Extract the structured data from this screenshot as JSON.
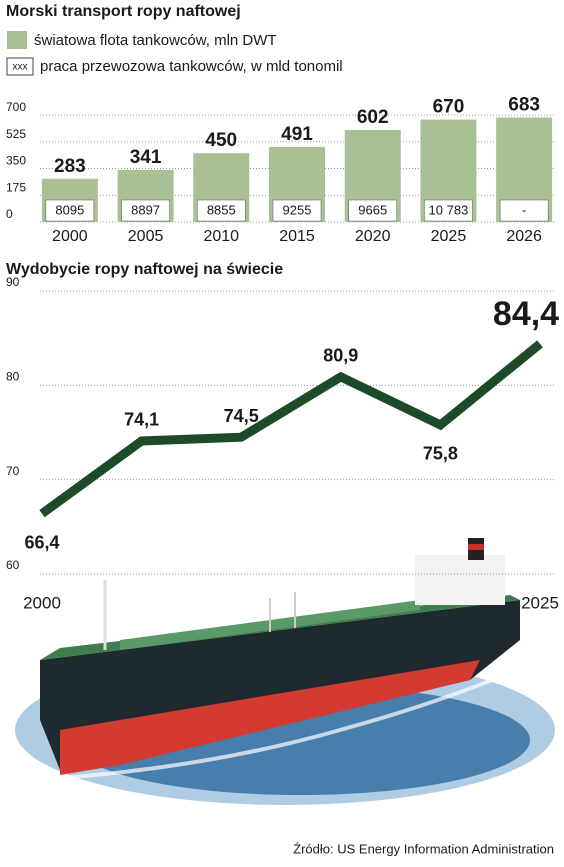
{
  "chart_data": [
    {
      "type": "bar",
      "title": "Morski transport ropy naftowej",
      "categories": [
        "2000",
        "2005",
        "2010",
        "2015",
        "2020",
        "2025",
        "2026"
      ],
      "series": [
        {
          "name": "światowa flota tankowców, mln DWT",
          "color": "#a9bf94",
          "values": [
            283,
            341,
            450,
            491,
            602,
            670,
            683
          ]
        },
        {
          "name": "praca przewozowa tankowców, w mld tonomil",
          "marker_label": "xxx",
          "color": "#ffffff",
          "values": [
            8095,
            8897,
            8855,
            9255,
            9665,
            10783,
            null
          ],
          "value_labels": [
            "8095",
            "8897",
            "8855",
            "9255",
            "9665",
            "10 783",
            "-"
          ]
        }
      ],
      "ylim": [
        0,
        700
      ],
      "yticks": [
        0,
        175,
        350,
        525,
        700
      ],
      "grid": true
    },
    {
      "type": "line",
      "title": "Wydobycie ropy naftowej na świecie",
      "categories": [
        "2000",
        null,
        null,
        null,
        null,
        "2025"
      ],
      "series": [
        {
          "color": "#1d4a27",
          "values": [
            66.4,
            74.1,
            74.5,
            80.9,
            75.8,
            84.4
          ],
          "value_labels": [
            "66,4",
            "74,1",
            "74,5",
            "80,9",
            "75,8",
            "84,4"
          ]
        }
      ],
      "ylim": [
        60,
        90
      ],
      "yticks": [
        60,
        70,
        80,
        90
      ],
      "grid": true
    }
  ],
  "source": "Źródło: US Energy Information Administration"
}
